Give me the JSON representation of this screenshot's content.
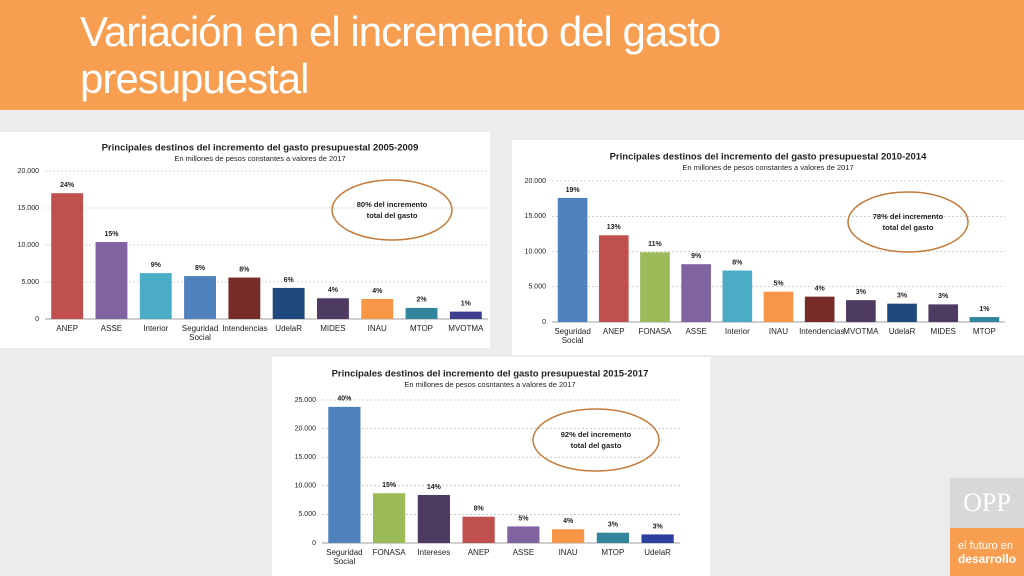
{
  "slide_title": "Variación en el incremento del gasto presupuestal",
  "logo": {
    "name": "OPP",
    "tagline": [
      "el futuro en",
      "desarrollo"
    ]
  },
  "chart_data": [
    {
      "type": "bar",
      "title": "Principales destinos del incremento del gasto presupuestal 2005-2009",
      "subtitle": "En millones de pesos constantes  a valores de 2017",
      "categories": [
        "ANEP",
        "ASSE",
        "Interior",
        "Seguridad Social",
        "Intendencias",
        "UdelaR",
        "MIDES",
        "INAU",
        "MTOP",
        "MVOTMA"
      ],
      "values": [
        17000,
        10400,
        6200,
        5800,
        5600,
        4200,
        2800,
        2700,
        1500,
        1000
      ],
      "share_labels": [
        "24%",
        "15%",
        "9%",
        "8%",
        "8%",
        "6%",
        "4%",
        "4%",
        "2%",
        "1%"
      ],
      "colors": [
        "#c0504d",
        "#8064a2",
        "#4bacc6",
        "#4f81bd",
        "#772c2a",
        "#1f497d",
        "#4d3b62",
        "#f79646",
        "#31859c",
        "#3f3f8f"
      ],
      "ylim": [
        0,
        20000
      ],
      "yticks": [
        0,
        {
          "value": 5000,
          "label": "5.000"
        },
        {
          "value": 10000,
          "label": "10.000"
        },
        {
          "value": 15000,
          "label": "15.000"
        },
        {
          "value": 20000,
          "label": "20.000"
        }
      ],
      "grid": true,
      "annotation": [
        "80% del incremento",
        "total del gasto"
      ]
    },
    {
      "type": "bar",
      "title": "Principales destinos del incremento del gasto presupuestal 2010-2014",
      "subtitle": "En millones de pesos constantes a valores de 2017",
      "categories": [
        "Seguridad Social",
        "ANEP",
        "FONASA",
        "ASSE",
        "Interior",
        "INAU",
        "Intendencias",
        "MVOTMA",
        "UdelaR",
        "MIDES",
        "MTOP"
      ],
      "values": [
        17600,
        12300,
        9900,
        8200,
        7300,
        4300,
        3600,
        3100,
        2600,
        2500,
        700
      ],
      "share_labels": [
        "19%",
        "13%",
        "11%",
        "9%",
        "8%",
        "5%",
        "4%",
        "3%",
        "3%",
        "3%",
        "1%"
      ],
      "colors": [
        "#4f81bd",
        "#c0504d",
        "#9bbb59",
        "#8064a2",
        "#4bacc6",
        "#f79646",
        "#772c2a",
        "#4d3b62",
        "#1f497d",
        "#4d3b62",
        "#31859c"
      ],
      "ylim": [
        0,
        20000
      ],
      "yticks": [
        0,
        {
          "value": 5000,
          "label": "5.000"
        },
        {
          "value": 10000,
          "label": "10.000"
        },
        {
          "value": 15000,
          "label": "15.000"
        },
        {
          "value": 20000,
          "label": "20.000"
        }
      ],
      "grid": true,
      "annotation": [
        "78% del incremento",
        "total del gasto"
      ]
    },
    {
      "type": "bar",
      "title": "Principales destinos del incremento del gasto presupuestal 2015-2017",
      "subtitle": "En millones de pesos cosntantes a valores de 2017",
      "categories": [
        "Seguridad Social",
        "FONASA",
        "Intereses",
        "ANEP",
        "ASSE",
        "INAU",
        "MTOP",
        "UdelaR"
      ],
      "values": [
        23800,
        8700,
        8400,
        4600,
        2900,
        2400,
        1800,
        1500
      ],
      "share_labels": [
        "40%",
        "15%",
        "14%",
        "8%",
        "5%",
        "4%",
        "3%",
        "3%"
      ],
      "colors": [
        "#4f81bd",
        "#9bbb59",
        "#4d3b62",
        "#c0504d",
        "#8064a2",
        "#f79646",
        "#31859c",
        "#2a3f9e"
      ],
      "ylim": [
        0,
        25000
      ],
      "yticks": [
        0,
        {
          "value": 5000,
          "label": "5.000"
        },
        {
          "value": 10000,
          "label": "10.000"
        },
        {
          "value": 15000,
          "label": "15.000"
        },
        {
          "value": 20000,
          "label": "20.000"
        },
        {
          "value": 25000,
          "label": "25.000"
        }
      ],
      "grid": true,
      "annotation": [
        "92% del incremento",
        "total del gasto"
      ]
    }
  ]
}
